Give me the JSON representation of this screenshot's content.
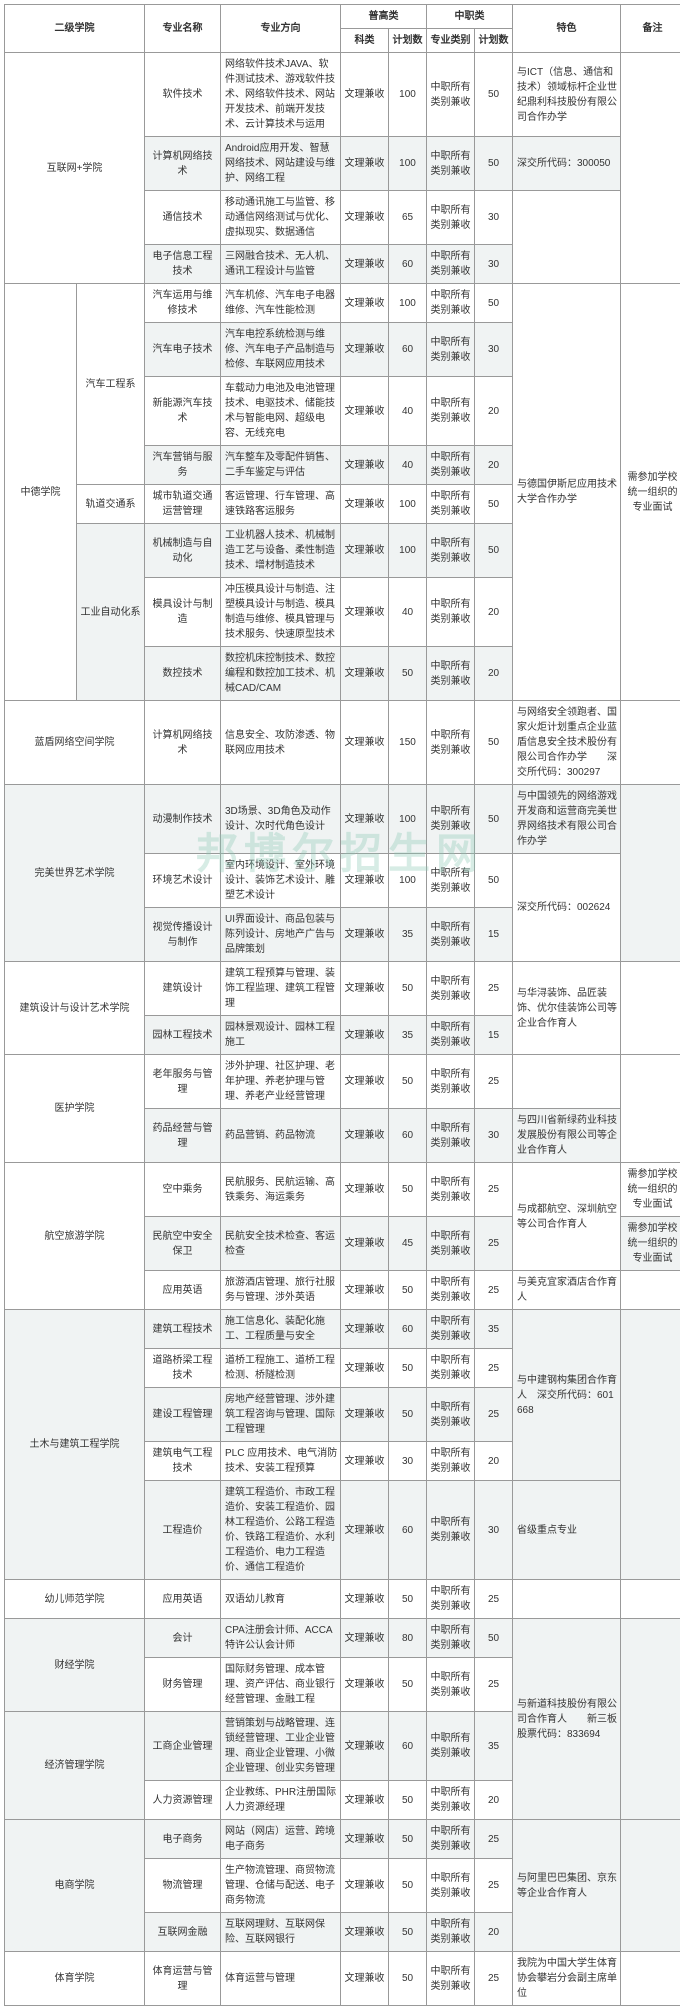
{
  "watermark": "邦博尔招生网",
  "headers": {
    "college": "二级学院",
    "major": "专业名称",
    "direction": "专业方向",
    "general": "普高类",
    "vocational": "中职类",
    "feature": "特色",
    "note": "备注",
    "subject": "科类",
    "plan": "计划数",
    "category": "专业类别",
    "plan2": "计划数"
  },
  "common": {
    "wenli": "文理兼收",
    "zhongzhi": "中职所有类别兼收"
  },
  "colleges": [
    {
      "name": "互联网+学院",
      "rows": [
        {
          "major": "软件技术",
          "dir": "网络软件技术JAVA、软件测试技术、游戏软件技术、网络软件技术、网站开发技术、前端开发技术、云计算技术与运用",
          "p1": "100",
          "p2": "50",
          "feature": "与ICT（信息、通信和技术）领域标杆企业世纪鼎利科技股份有限公司合作办学",
          "alt": false
        },
        {
          "major": "计算机网络技术",
          "dir": "Android应用开发、智慧网络技术、网站建设与维护、网络工程",
          "p1": "100",
          "p2": "50",
          "feature": "深交所代码：300050",
          "alt": true
        },
        {
          "major": "通信技术",
          "dir": "移动通讯施工与监管、移动通信网络测试与优化、虚拟现实、数据通信",
          "p1": "65",
          "p2": "30",
          "feature": "",
          "alt": false
        },
        {
          "major": "电子信息工程技术",
          "dir": "三网融合技术、无人机、通讯工程设计与监管",
          "p1": "60",
          "p2": "30",
          "feature": "",
          "alt": true
        }
      ],
      "featureSpan": [
        1,
        1,
        2
      ]
    },
    {
      "name": "中德学院",
      "depts": [
        {
          "dept": "汽车工程系",
          "rows": [
            {
              "major": "汽车运用与维修技术",
              "dir": "汽车机修、汽车电子电器维修、汽车性能检测",
              "p1": "100",
              "p2": "50",
              "alt": false
            },
            {
              "major": "汽车电子技术",
              "dir": "汽车电控系统检测与维修、汽车电子产品制造与检修、车联网应用技术",
              "p1": "60",
              "p2": "30",
              "alt": true
            },
            {
              "major": "新能源汽车技术",
              "dir": "车载动力电池及电池管理技术、电驱技术、储能技术与智能电网、超级电容、无线充电",
              "p1": "40",
              "p2": "20",
              "alt": false
            },
            {
              "major": "汽车营销与服务",
              "dir": "汽车整车及零配件销售、二手车鉴定与评估",
              "p1": "40",
              "p2": "20",
              "alt": true
            }
          ]
        },
        {
          "dept": "轨道交通系",
          "rows": [
            {
              "major": "城市轨道交通运营管理",
              "dir": "客运管理、行车管理、高速铁路客运服务",
              "p1": "100",
              "p2": "50",
              "alt": false
            }
          ]
        },
        {
          "dept": "工业自动化系",
          "rows": [
            {
              "major": "机械制造与自动化",
              "dir": "工业机器人技术、机械制造工艺与设备、柔性制造技术、增材制造技术",
              "p1": "100",
              "p2": "50",
              "alt": true
            },
            {
              "major": "模具设计与制造",
              "dir": "冲压模具设计与制造、注塑模具设计与制造、模具制造与维修、模具管理与技术服务、快速原型技术",
              "p1": "40",
              "p2": "20",
              "alt": false
            },
            {
              "major": "数控技术",
              "dir": "数控机床控制技术、数控编程和数控加工技术、机械CAD/CAM",
              "p1": "50",
              "p2": "20",
              "alt": true
            }
          ]
        }
      ],
      "feature": "与德国伊斯尼应用技术大学合作办学",
      "note": "需参加学校统一组织的专业面试"
    }
  ],
  "flat": [
    {
      "college": "蓝盾网络空间学院",
      "cspan": 1,
      "major": "计算机网络技术",
      "dir": "信息安全、攻防渗透、物联网应用技术",
      "p1": "150",
      "p2": "50",
      "feature": "与网络安全领跑者、国家火炬计划重点企业蓝盾信息安全技术股份有限公司合作办学　　深交所代码：300297",
      "fspan": 1,
      "note": "",
      "nspan": 1,
      "alt": false
    },
    {
      "college": "完美世界艺术学院",
      "cspan": 3,
      "major": "动漫制作技术",
      "dir": "3D场景、3D角色及动作设计、次时代角色设计",
      "p1": "100",
      "p2": "50",
      "feature": "与中国领先的网络游戏开发商和运营商完美世界网络技术有限公司合作办学",
      "fspan": 1,
      "note": "",
      "nspan": 3,
      "alt": true
    },
    {
      "college": "",
      "major": "环境艺术设计",
      "dir": "室内环境设计、室外环境设计、装饰艺术设计、雕塑艺术设计",
      "p1": "100",
      "p2": "50",
      "feature": "深交所代码：002624",
      "fspan": 2,
      "alt": false
    },
    {
      "college": "",
      "major": "视觉传播设计与制作",
      "dir": "UI界面设计、商品包装与陈列设计、房地产广告与品牌策划",
      "p1": "35",
      "p2": "15",
      "alt": true
    },
    {
      "college": "建筑设计与设计艺术学院",
      "cspan": 2,
      "major": "建筑设计",
      "dir": "建筑工程预算与管理、装饰工程监理、建筑工程管理",
      "p1": "50",
      "p2": "25",
      "feature": "与华浔装饰、品匠装饰、优尔佳装饰公司等企业合作育人",
      "fspan": 2,
      "note": "",
      "nspan": 2,
      "alt": false
    },
    {
      "college": "",
      "major": "园林工程技术",
      "dir": "园林景观设计、园林工程施工",
      "p1": "35",
      "p2": "15",
      "alt": true
    },
    {
      "college": "医护学院",
      "cspan": 2,
      "major": "老年服务与管理",
      "dir": "涉外护理、社区护理、老年护理、养老护理与管理、养老产业经营管理",
      "p1": "50",
      "p2": "25",
      "feature": "",
      "fspan": 1,
      "note": "",
      "nspan": 2,
      "alt": false
    },
    {
      "college": "",
      "major": "药品经营与管理",
      "dir": "药品营销、药品物流",
      "p1": "60",
      "p2": "30",
      "feature": "与四川省新绿药业科技发展股份有限公司等企业合作育人",
      "fspan": 1,
      "alt": true
    },
    {
      "college": "航空旅游学院",
      "cspan": 3,
      "major": "空中乘务",
      "dir": "民航服务、民航运输、高铁乘务、海运乘务",
      "p1": "50",
      "p2": "25",
      "feature": "与成都航空、深圳航空等公司合作育人",
      "fspan": 2,
      "note": "需参加学校统一组织的专业面试",
      "nspan": 1,
      "alt": false
    },
    {
      "college": "",
      "major": "民航空中安全保卫",
      "dir": "民航安全技术检查、客运检查",
      "p1": "45",
      "p2": "25",
      "note": "需参加学校统一组织的专业面试",
      "nspan": 1,
      "alt": true
    },
    {
      "college": "",
      "major": "应用英语",
      "dir": "旅游酒店管理、旅行社服务与管理、涉外英语",
      "p1": "50",
      "p2": "25",
      "feature": "与美克宜家酒店合作育人",
      "fspan": 1,
      "note": "",
      "nspan": 1,
      "alt": false
    },
    {
      "college": "土木与建筑工程学院",
      "cspan": 5,
      "major": "建筑工程技术",
      "dir": "施工信息化、装配化施工、工程质量与安全",
      "p1": "60",
      "p2": "35",
      "feature": "与中建钢构集团合作育人　深交所代码：601668",
      "fspan": 4,
      "note": "",
      "nspan": 5,
      "alt": true
    },
    {
      "college": "",
      "major": "道路桥梁工程技术",
      "dir": "道桥工程施工、道桥工程检测、桥隧检测",
      "p1": "50",
      "p2": "25",
      "alt": false
    },
    {
      "college": "",
      "major": "建设工程管理",
      "dir": "房地产经营管理、涉外建筑工程咨询与管理、国际工程管理",
      "p1": "50",
      "p2": "25",
      "alt": true
    },
    {
      "college": "",
      "major": "建筑电气工程技术",
      "dir": "PLC 应用技术、电气消防技术、安装工程预算",
      "p1": "30",
      "p2": "20",
      "alt": false
    },
    {
      "college": "",
      "major": "工程造价",
      "dir": "建筑工程造价、市政工程造价、安装工程造价、园林工程造价、公路工程造价、铁路工程造价、水利工程造价、电力工程造价、通信工程造价",
      "p1": "60",
      "p2": "30",
      "feature": "省级重点专业",
      "fspan": 1,
      "alt": true
    },
    {
      "college": "幼儿师范学院",
      "cspan": 1,
      "major": "应用英语",
      "dir": "双语幼儿教育",
      "p1": "50",
      "p2": "25",
      "feature": "",
      "fspan": 1,
      "note": "",
      "nspan": 1,
      "alt": false
    },
    {
      "college": "财经学院",
      "cspan": 2,
      "major": "会计",
      "dir": "CPA注册会计师、ACCA特许公认会计师",
      "p1": "80",
      "p2": "50",
      "feature": "与新道科技股份有限公司合作育人　　新三板股票代码：833694",
      "fspan": 4,
      "note": "",
      "nspan": 4,
      "alt": true
    },
    {
      "college": "",
      "major": "财务管理",
      "dir": "国际财务管理、成本管理、资产评估、商业银行经营管理、金融工程",
      "p1": "50",
      "p2": "25",
      "alt": false
    },
    {
      "college": "经济管理学院",
      "cspan": 2,
      "major": "工商企业管理",
      "dir": "营销策划与战略管理、连锁经营管理、工业企业管理、商业企业管理、小微企业管理、创业实务管理",
      "p1": "60",
      "p2": "35",
      "alt": true
    },
    {
      "college": "",
      "major": "人力资源管理",
      "dir": "企业教练、PHR注册国际人力资源经理",
      "p1": "50",
      "p2": "20",
      "alt": false
    },
    {
      "college": "电商学院",
      "cspan": 3,
      "major": "电子商务",
      "dir": "网站（网店）运营、跨境电子商务",
      "p1": "50",
      "p2": "25",
      "feature": "与阿里巴巴集团、京东等企业合作育人",
      "fspan": 3,
      "note": "",
      "nspan": 3,
      "alt": true
    },
    {
      "college": "",
      "major": "物流管理",
      "dir": "生产物流管理、商贸物流管理、仓储与配送、电子商务物流",
      "p1": "50",
      "p2": "25",
      "alt": false
    },
    {
      "college": "",
      "major": "互联网金融",
      "dir": "互联网理财、互联网保险、互联网银行",
      "p1": "50",
      "p2": "20",
      "alt": true
    },
    {
      "college": "体育学院",
      "cspan": 1,
      "major": "体育运营与管理",
      "dir": "体育运营与管理",
      "p1": "50",
      "p2": "25",
      "feature": "我院为中国大学生体育协会攀岩分会副主席单位",
      "fspan": 1,
      "note": "",
      "nspan": 1,
      "alt": false
    }
  ]
}
